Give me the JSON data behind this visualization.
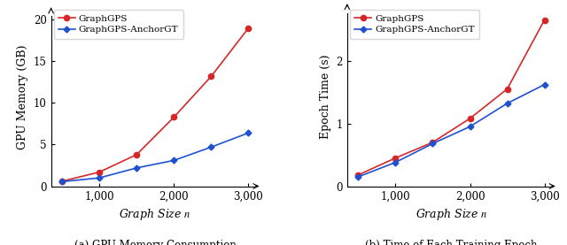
{
  "graph_sizes": [
    500,
    1000,
    1500,
    2000,
    2500,
    3000
  ],
  "gpu_gps": [
    0.6,
    1.7,
    3.8,
    8.3,
    13.2,
    19.0
  ],
  "gpu_anchor": [
    0.55,
    1.0,
    2.2,
    3.1,
    4.7,
    6.4
  ],
  "time_gps": [
    0.18,
    0.45,
    0.7,
    1.08,
    1.55,
    2.65
  ],
  "time_anchor": [
    0.15,
    0.38,
    0.68,
    0.95,
    1.32,
    1.62
  ],
  "color_gps": "#d62728",
  "color_anchor": "#1f50d0",
  "label_gps": "GraphGPS",
  "label_anchor": "GraphGPS-AnchorGT",
  "xlabel": "Graph Size $n$",
  "ylabel_left": "GPU Memory (GB)",
  "ylabel_right": "Epoch Time (s)",
  "caption_left": "(a) GPU Memory Consumption",
  "caption_right": "(b) Time of Each Training Epoch",
  "xlim_left": [
    350,
    3150
  ],
  "xlim_right": [
    350,
    3150
  ],
  "ylim_left": [
    0,
    21.5
  ],
  "ylim_right": [
    0,
    2.85
  ],
  "xticks": [
    1000,
    2000,
    3000
  ],
  "yticks_left": [
    0,
    5,
    10,
    15,
    20
  ],
  "yticks_right": [
    0,
    1,
    2
  ]
}
